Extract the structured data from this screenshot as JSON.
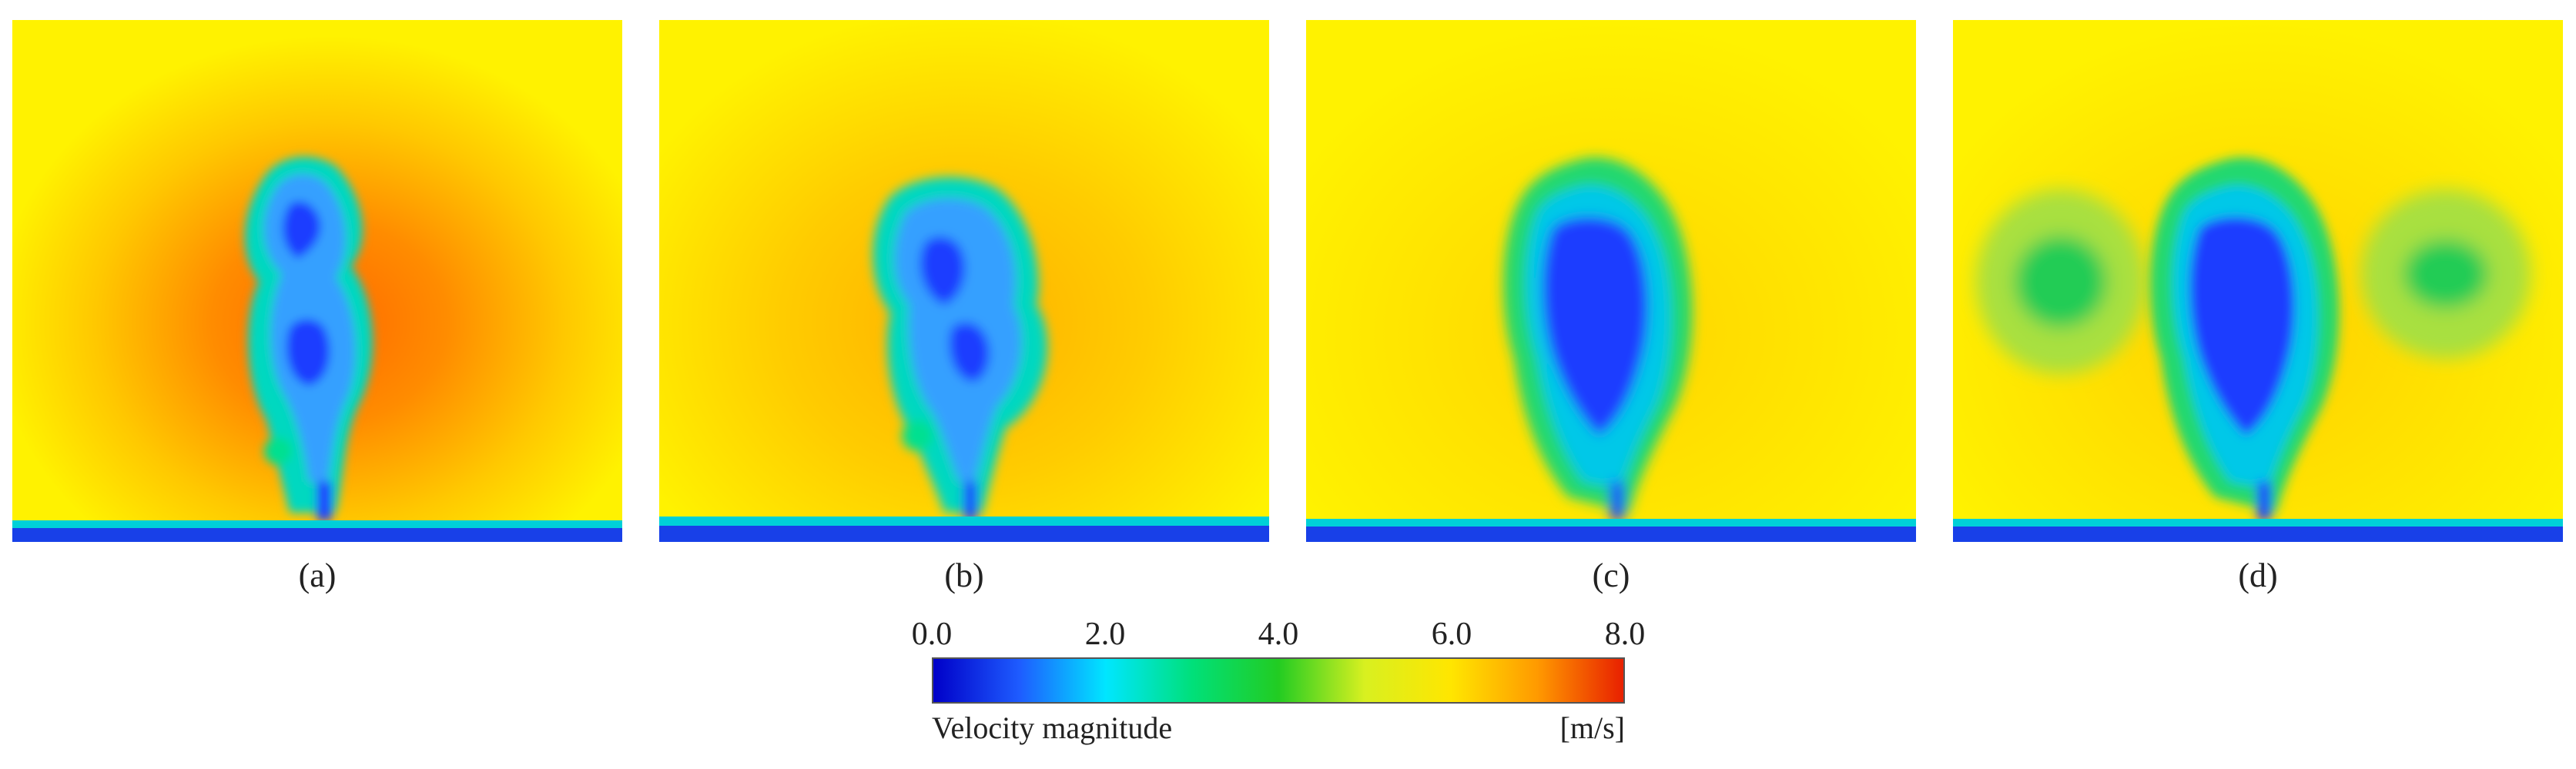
{
  "panels": [
    {
      "id": "a",
      "label": "(a)"
    },
    {
      "id": "b",
      "label": "(b)"
    },
    {
      "id": "c",
      "label": "(c)"
    },
    {
      "id": "d",
      "label": "(d)"
    }
  ],
  "colorbar": {
    "ticks": [
      "0.0",
      "2.0",
      "4.0",
      "6.0",
      "8.0"
    ],
    "min": 0,
    "max": 8,
    "title": "Velocity magnitude",
    "unit": "[m/s]",
    "colors": [
      "#0000c8",
      "#1e5cff",
      "#00e6ff",
      "#00e07a",
      "#22cc22",
      "#d8f020",
      "#ffe600",
      "#ff9a00",
      "#e82000"
    ]
  },
  "palette": {
    "background_field": "#fff000",
    "hot": "#ff7a00",
    "warm": "#ffb000",
    "cold_core": "#1a3cff",
    "mid": "#00dcd8",
    "green": "#22cc44"
  }
}
